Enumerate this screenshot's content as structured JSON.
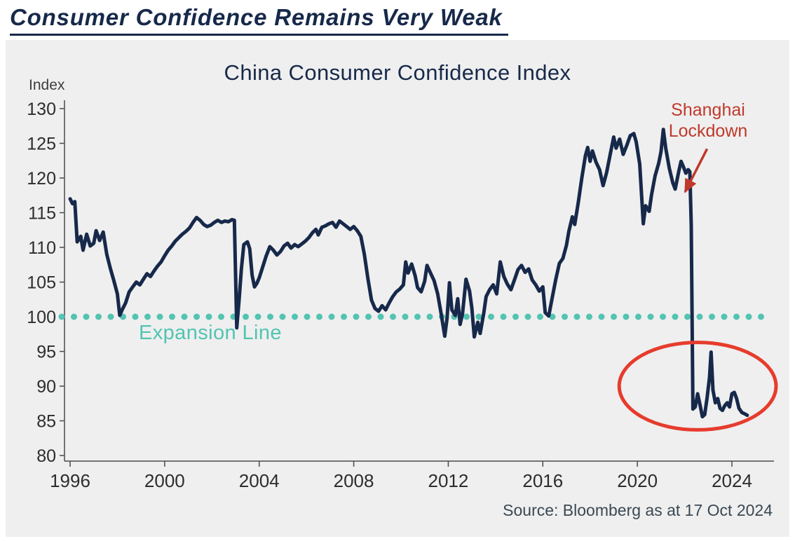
{
  "page": {
    "heading": "Consumer Confidence Remains Very Weak"
  },
  "colors": {
    "navy": "#17294a",
    "teal": "#52c4b1",
    "red": "#bf392b",
    "red-bright": "#e63c2d",
    "panel": "#efefef",
    "axis": "#4a4a4a",
    "tick-text": "#2d2d2d",
    "source-text": "#3b4852"
  },
  "chart_data": {
    "type": "line",
    "title": "China Consumer Confidence Index",
    "xlabel": "",
    "ylabel": "Index",
    "xlim": [
      1996,
      2024
    ],
    "ylim": [
      80,
      130
    ],
    "y_ticks": [
      130,
      125,
      120,
      115,
      110,
      105,
      100,
      95,
      90,
      85,
      80
    ],
    "x_ticks": [
      1996,
      2000,
      2004,
      2008,
      2012,
      2016,
      2020,
      2024
    ],
    "grid": false,
    "legend": "none",
    "expansion_line": {
      "value": 100,
      "label": "Expansion Line"
    },
    "annotations": {
      "shanghai_lockdown": {
        "text": "Shanghai\nLockdown",
        "arrow_from": {
          "x": 2022.95,
          "y": 124.2
        },
        "arrow_to": {
          "x": 2022.02,
          "y": 118.0
        }
      },
      "weak_period_circle": {
        "cx": 2022.55,
        "cy": 90,
        "rx_years": 3.32,
        "ry_units": 6.3
      }
    },
    "source": "Source: Bloomberg as at 17 Oct 2024",
    "series": [
      {
        "name": "China Consumer Confidence Index",
        "points": [
          [
            1996.0,
            117.0
          ],
          [
            1996.1,
            116.3
          ],
          [
            1996.2,
            116.6
          ],
          [
            1996.3,
            110.8
          ],
          [
            1996.45,
            111.6
          ],
          [
            1996.55,
            109.6
          ],
          [
            1996.7,
            111.9
          ],
          [
            1996.85,
            110.2
          ],
          [
            1997.0,
            110.6
          ],
          [
            1997.1,
            112.4
          ],
          [
            1997.25,
            111.0
          ],
          [
            1997.4,
            112.2
          ],
          [
            1997.55,
            109.0
          ],
          [
            1997.7,
            107.0
          ],
          [
            1997.85,
            105.2
          ],
          [
            1998.0,
            103.3
          ],
          [
            1998.1,
            100.2
          ],
          [
            1998.2,
            101.0
          ],
          [
            1998.35,
            102.0
          ],
          [
            1998.5,
            103.6
          ],
          [
            1998.65,
            104.3
          ],
          [
            1998.8,
            105.0
          ],
          [
            1998.95,
            104.6
          ],
          [
            1999.1,
            105.4
          ],
          [
            1999.25,
            106.2
          ],
          [
            1999.4,
            105.8
          ],
          [
            1999.55,
            106.6
          ],
          [
            1999.7,
            107.3
          ],
          [
            1999.85,
            107.9
          ],
          [
            2000.0,
            108.8
          ],
          [
            2000.15,
            109.6
          ],
          [
            2000.3,
            110.2
          ],
          [
            2000.45,
            110.9
          ],
          [
            2000.6,
            111.4
          ],
          [
            2000.75,
            111.9
          ],
          [
            2000.9,
            112.3
          ],
          [
            2001.05,
            112.8
          ],
          [
            2001.2,
            113.6
          ],
          [
            2001.35,
            114.3
          ],
          [
            2001.5,
            113.9
          ],
          [
            2001.65,
            113.3
          ],
          [
            2001.8,
            113.0
          ],
          [
            2001.95,
            113.2
          ],
          [
            2002.1,
            113.6
          ],
          [
            2002.25,
            113.9
          ],
          [
            2002.4,
            113.6
          ],
          [
            2002.55,
            113.8
          ],
          [
            2002.7,
            113.7
          ],
          [
            2002.85,
            114.0
          ],
          [
            2002.95,
            113.9
          ],
          [
            2003.05,
            98.4
          ],
          [
            2003.15,
            102.5
          ],
          [
            2003.25,
            107.0
          ],
          [
            2003.35,
            110.4
          ],
          [
            2003.5,
            110.8
          ],
          [
            2003.6,
            109.8
          ],
          [
            2003.7,
            106.0
          ],
          [
            2003.8,
            104.3
          ],
          [
            2003.9,
            104.8
          ],
          [
            2004.0,
            105.6
          ],
          [
            2004.15,
            107.2
          ],
          [
            2004.3,
            108.8
          ],
          [
            2004.45,
            110.1
          ],
          [
            2004.6,
            109.6
          ],
          [
            2004.75,
            108.9
          ],
          [
            2004.9,
            109.4
          ],
          [
            2005.05,
            110.2
          ],
          [
            2005.2,
            110.6
          ],
          [
            2005.35,
            109.9
          ],
          [
            2005.5,
            110.4
          ],
          [
            2005.65,
            110.1
          ],
          [
            2005.8,
            110.5
          ],
          [
            2005.95,
            110.9
          ],
          [
            2006.1,
            111.4
          ],
          [
            2006.25,
            112.1
          ],
          [
            2006.4,
            112.6
          ],
          [
            2006.5,
            111.8
          ],
          [
            2006.65,
            112.9
          ],
          [
            2006.8,
            113.1
          ],
          [
            2006.95,
            113.4
          ],
          [
            2007.1,
            113.6
          ],
          [
            2007.25,
            112.9
          ],
          [
            2007.4,
            113.8
          ],
          [
            2007.55,
            113.4
          ],
          [
            2007.7,
            113.0
          ],
          [
            2007.85,
            112.6
          ],
          [
            2008.0,
            113.0
          ],
          [
            2008.15,
            112.4
          ],
          [
            2008.3,
            111.6
          ],
          [
            2008.45,
            109.0
          ],
          [
            2008.6,
            105.5
          ],
          [
            2008.75,
            102.4
          ],
          [
            2008.9,
            101.2
          ],
          [
            2009.05,
            100.8
          ],
          [
            2009.2,
            101.6
          ],
          [
            2009.35,
            101.0
          ],
          [
            2009.5,
            102.0
          ],
          [
            2009.65,
            102.9
          ],
          [
            2009.8,
            103.6
          ],
          [
            2009.95,
            104.0
          ],
          [
            2010.1,
            104.6
          ],
          [
            2010.2,
            107.9
          ],
          [
            2010.3,
            106.3
          ],
          [
            2010.45,
            107.6
          ],
          [
            2010.6,
            105.9
          ],
          [
            2010.7,
            104.2
          ],
          [
            2010.85,
            103.6
          ],
          [
            2011.0,
            105.1
          ],
          [
            2011.1,
            107.4
          ],
          [
            2011.25,
            106.3
          ],
          [
            2011.4,
            105.2
          ],
          [
            2011.55,
            103.3
          ],
          [
            2011.7,
            100.4
          ],
          [
            2011.85,
            97.2
          ],
          [
            2011.95,
            99.8
          ],
          [
            2012.05,
            104.9
          ],
          [
            2012.15,
            101.0
          ],
          [
            2012.3,
            100.2
          ],
          [
            2012.4,
            102.6
          ],
          [
            2012.5,
            98.9
          ],
          [
            2012.6,
            100.4
          ],
          [
            2012.75,
            105.4
          ],
          [
            2012.9,
            103.7
          ],
          [
            2013.0,
            101.2
          ],
          [
            2013.1,
            97.1
          ],
          [
            2013.25,
            99.2
          ],
          [
            2013.35,
            97.6
          ],
          [
            2013.5,
            100.5
          ],
          [
            2013.6,
            102.9
          ],
          [
            2013.75,
            103.9
          ],
          [
            2013.9,
            104.6
          ],
          [
            2014.05,
            103.3
          ],
          [
            2014.2,
            107.9
          ],
          [
            2014.35,
            105.8
          ],
          [
            2014.5,
            104.7
          ],
          [
            2014.65,
            103.9
          ],
          [
            2014.8,
            105.3
          ],
          [
            2014.95,
            106.8
          ],
          [
            2015.1,
            107.4
          ],
          [
            2015.25,
            106.4
          ],
          [
            2015.4,
            106.9
          ],
          [
            2015.55,
            105.3
          ],
          [
            2015.7,
            104.6
          ],
          [
            2015.85,
            103.7
          ],
          [
            2016.0,
            104.3
          ],
          [
            2016.1,
            100.6
          ],
          [
            2016.25,
            100.1
          ],
          [
            2016.4,
            102.8
          ],
          [
            2016.55,
            105.4
          ],
          [
            2016.7,
            107.7
          ],
          [
            2016.85,
            108.4
          ],
          [
            2017.0,
            110.3
          ],
          [
            2017.1,
            112.3
          ],
          [
            2017.25,
            114.4
          ],
          [
            2017.35,
            113.3
          ],
          [
            2017.5,
            116.5
          ],
          [
            2017.65,
            120.0
          ],
          [
            2017.8,
            123.2
          ],
          [
            2017.9,
            124.4
          ],
          [
            2018.0,
            122.4
          ],
          [
            2018.1,
            123.9
          ],
          [
            2018.25,
            122.3
          ],
          [
            2018.4,
            121.2
          ],
          [
            2018.55,
            118.9
          ],
          [
            2018.7,
            120.8
          ],
          [
            2018.85,
            123.4
          ],
          [
            2019.0,
            125.9
          ],
          [
            2019.1,
            124.3
          ],
          [
            2019.25,
            125.6
          ],
          [
            2019.4,
            123.4
          ],
          [
            2019.55,
            124.7
          ],
          [
            2019.7,
            126.1
          ],
          [
            2019.85,
            126.4
          ],
          [
            2019.95,
            125.2
          ],
          [
            2020.1,
            122.0
          ],
          [
            2020.25,
            113.4
          ],
          [
            2020.35,
            116.0
          ],
          [
            2020.5,
            115.2
          ],
          [
            2020.6,
            117.6
          ],
          [
            2020.75,
            120.3
          ],
          [
            2020.9,
            122.1
          ],
          [
            2021.0,
            123.8
          ],
          [
            2021.1,
            127.0
          ],
          [
            2021.2,
            124.3
          ],
          [
            2021.35,
            121.4
          ],
          [
            2021.5,
            119.3
          ],
          [
            2021.6,
            118.4
          ],
          [
            2021.75,
            120.9
          ],
          [
            2021.85,
            122.4
          ],
          [
            2021.95,
            121.6
          ],
          [
            2022.05,
            120.7
          ],
          [
            2022.15,
            121.2
          ],
          [
            2022.22,
            120.9
          ],
          [
            2022.28,
            113.2
          ],
          [
            2022.35,
            86.7
          ],
          [
            2022.45,
            87.0
          ],
          [
            2022.55,
            88.9
          ],
          [
            2022.65,
            87.3
          ],
          [
            2022.75,
            85.6
          ],
          [
            2022.85,
            85.9
          ],
          [
            2022.95,
            88.3
          ],
          [
            2023.05,
            91.2
          ],
          [
            2023.12,
            94.9
          ],
          [
            2023.2,
            89.4
          ],
          [
            2023.3,
            87.6
          ],
          [
            2023.4,
            88.2
          ],
          [
            2023.5,
            86.8
          ],
          [
            2023.6,
            86.5
          ],
          [
            2023.7,
            87.2
          ],
          [
            2023.8,
            87.6
          ],
          [
            2023.9,
            87.0
          ],
          [
            2024.0,
            88.9
          ],
          [
            2024.1,
            89.1
          ],
          [
            2024.2,
            88.2
          ],
          [
            2024.3,
            86.8
          ],
          [
            2024.42,
            86.2
          ],
          [
            2024.55,
            86.0
          ],
          [
            2024.65,
            85.8
          ]
        ]
      }
    ]
  }
}
